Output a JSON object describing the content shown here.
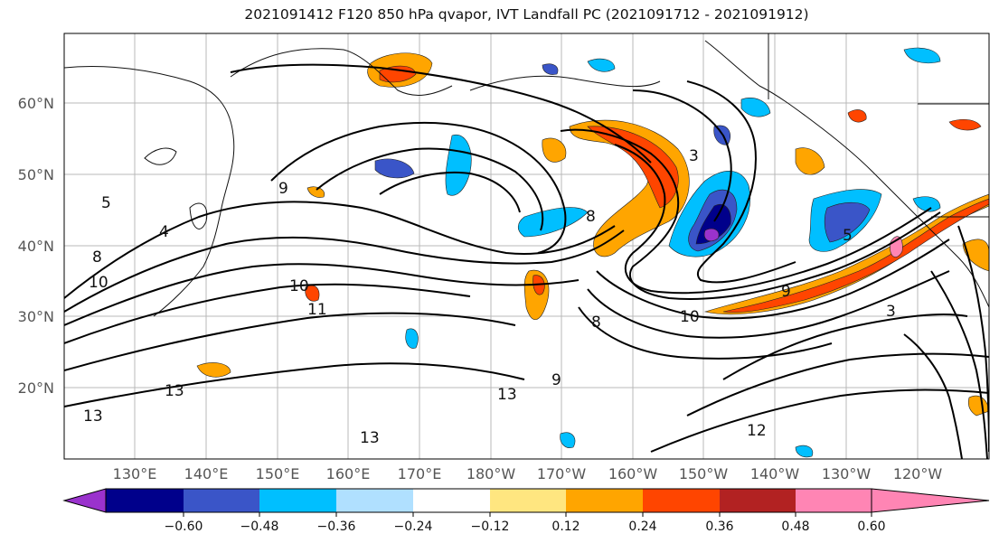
{
  "title": "2021091412 F120 850 hPa qvapor, IVT Landfall PC (2021091712 - 2021091912)",
  "lat_labels": [
    "60°N",
    "50°N",
    "40°N",
    "30°N",
    "20°N"
  ],
  "lon_labels": [
    "130°E",
    "140°E",
    "150°E",
    "160°E",
    "170°E",
    "180°W",
    "170°W",
    "160°W",
    "150°W",
    "140°W",
    "130°W",
    "120°W"
  ],
  "colorbar": {
    "colors": [
      "#9a32cd",
      "#00008b",
      "#3a55c8",
      "#00bfff",
      "#b0e0ff",
      "#ffffff",
      "#ffe680",
      "#ffa500",
      "#ff4500",
      "#b22222",
      "#ff85b4"
    ],
    "labels": [
      "−0.60",
      "−0.48",
      "−0.36",
      "−0.24",
      "−0.12",
      "0.12",
      "0.24",
      "0.36",
      "0.48",
      "0.60"
    ]
  },
  "contour_labels": [
    "5",
    "4",
    "9",
    "10",
    "11",
    "13",
    "13",
    "8",
    "3",
    "8",
    "9",
    "10",
    "9",
    "12",
    "13",
    "13",
    "5",
    "3",
    "10",
    "8"
  ]
}
